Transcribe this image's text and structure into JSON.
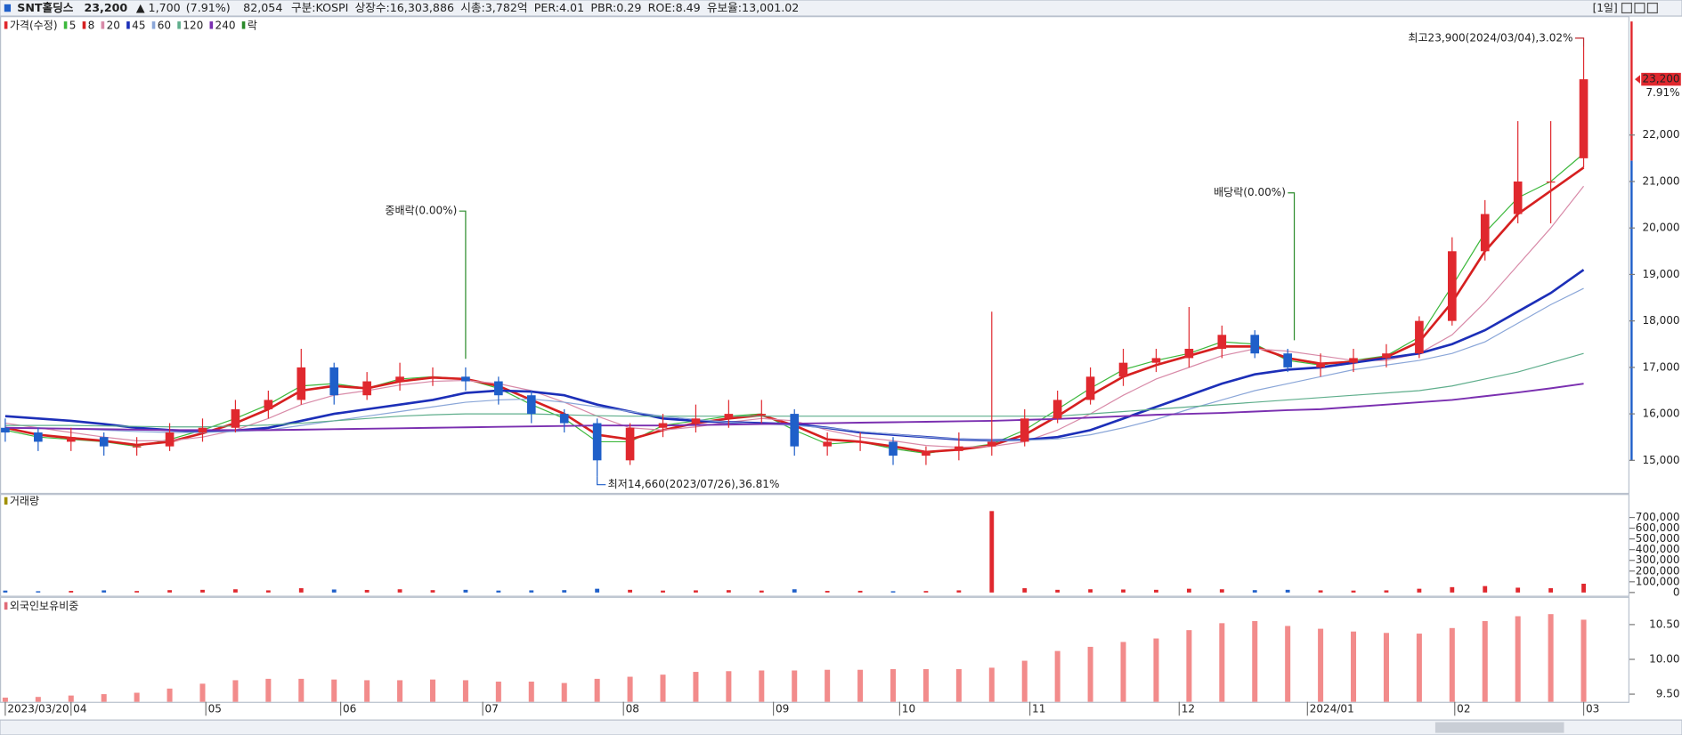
{
  "header": {
    "name": "SNT홀딩스",
    "price": "23,200",
    "change": "▲ 1,700",
    "change_pct": "(7.91%)",
    "volume": "82,054",
    "fields": [
      "구분:KOSPI",
      "상장수:16,303,886",
      "시총:3,782억",
      "PER:4.01",
      "PBR:0.29",
      "ROE:8.49",
      "유보율:13,001.02"
    ],
    "period": "[1일]"
  },
  "chart_data": [
    {
      "type": "candlestick",
      "name": "가격(수정)",
      "event_legend": "락",
      "up_color": "#e0282e",
      "down_color": "#1f5fc9",
      "x": [
        0,
        5,
        10,
        15,
        20,
        25,
        30,
        35,
        40,
        45,
        50,
        55,
        60,
        65,
        70,
        75,
        80,
        85,
        90,
        95,
        100,
        105,
        110,
        115,
        120,
        125,
        130,
        135,
        140,
        145,
        150,
        155,
        160,
        165,
        170,
        175,
        180,
        185,
        190,
        195,
        200,
        205,
        210,
        215,
        220,
        225,
        230,
        235,
        240
      ],
      "open": [
        15700,
        15600,
        15400,
        15500,
        15300,
        15300,
        15600,
        15700,
        16100,
        16300,
        17000,
        16400,
        16700,
        16800,
        16800,
        16700,
        16400,
        16000,
        15800,
        15000,
        15700,
        15800,
        15900,
        16000,
        16000,
        15300,
        15400,
        15400,
        15100,
        15200,
        15300,
        15400,
        15900,
        16300,
        16800,
        17100,
        17200,
        17400,
        17700,
        17300,
        17000,
        17100,
        17200,
        17300,
        18000,
        19500,
        20300,
        21000,
        21500
      ],
      "high": [
        15900,
        15700,
        15700,
        15600,
        15500,
        15800,
        15900,
        16300,
        16500,
        17400,
        17100,
        16900,
        17100,
        17000,
        17000,
        16800,
        16500,
        16100,
        15900,
        15800,
        16000,
        16200,
        16300,
        16300,
        16100,
        15600,
        15600,
        15500,
        15300,
        15600,
        18200,
        16100,
        16500,
        17000,
        17400,
        17400,
        18300,
        17900,
        17800,
        17400,
        17300,
        17400,
        17500,
        18100,
        19800,
        20600,
        22300,
        22300,
        23900
      ],
      "low": [
        15400,
        15200,
        15200,
        15100,
        15100,
        15200,
        15400,
        15600,
        15900,
        16200,
        16200,
        16300,
        16500,
        16600,
        16500,
        16200,
        15800,
        15600,
        14660,
        14900,
        15500,
        15600,
        15700,
        15800,
        15100,
        15100,
        15200,
        14900,
        14900,
        15000,
        15100,
        15300,
        15800,
        16200,
        16600,
        16900,
        17000,
        17200,
        17200,
        16900,
        16800,
        16900,
        17000,
        17200,
        17900,
        19300,
        20100,
        20100,
        21300
      ],
      "close": [
        15600,
        15400,
        15500,
        15300,
        15300,
        15600,
        15700,
        16100,
        16300,
        17000,
        16400,
        16700,
        16800,
        16800,
        16700,
        16400,
        16000,
        15800,
        15000,
        15700,
        15800,
        15900,
        16000,
        16000,
        15300,
        15400,
        15400,
        15100,
        15200,
        15300,
        15400,
        15900,
        16300,
        16800,
        17100,
        17200,
        17400,
        17700,
        17300,
        17000,
        17100,
        17200,
        17300,
        18000,
        19500,
        20300,
        21000,
        21000,
        23200
      ],
      "series": [
        {
          "name": "5",
          "color": "#3cb83c",
          "width": 1,
          "values": [
            15650,
            15500,
            15450,
            15400,
            15300,
            15450,
            15650,
            15900,
            16200,
            16600,
            16650,
            16550,
            16750,
            16800,
            16750,
            16550,
            16200,
            15900,
            15400,
            15400,
            15750,
            15850,
            15950,
            16000,
            15650,
            15350,
            15400,
            15250,
            15150,
            15250,
            15350,
            15650,
            16100,
            16550,
            16950,
            17150,
            17300,
            17550,
            17500,
            17150,
            17050,
            17150,
            17250,
            17650,
            18750,
            19900,
            20650,
            21000,
            21600
          ]
        },
        {
          "name": "8",
          "color": "#d62020",
          "width": 2.2,
          "values": [
            15700,
            15550,
            15480,
            15420,
            15330,
            15400,
            15580,
            15800,
            16100,
            16500,
            16600,
            16550,
            16700,
            16780,
            16750,
            16600,
            16300,
            16000,
            15550,
            15450,
            15650,
            15800,
            15900,
            15970,
            15750,
            15450,
            15400,
            15300,
            15180,
            15230,
            15320,
            15550,
            15950,
            16400,
            16800,
            17050,
            17250,
            17450,
            17450,
            17200,
            17080,
            17120,
            17220,
            17550,
            18400,
            19500,
            20300,
            20800,
            21300
          ]
        },
        {
          "name": "20",
          "color": "#d88aa8",
          "width": 1,
          "values": [
            15800,
            15700,
            15600,
            15500,
            15420,
            15420,
            15500,
            15650,
            15900,
            16200,
            16400,
            16500,
            16620,
            16700,
            16720,
            16650,
            16500,
            16250,
            15950,
            15700,
            15650,
            15720,
            15820,
            15900,
            15850,
            15650,
            15500,
            15420,
            15320,
            15280,
            15300,
            15400,
            15650,
            16000,
            16400,
            16750,
            17000,
            17250,
            17400,
            17350,
            17250,
            17150,
            17150,
            17300,
            17700,
            18400,
            19200,
            20000,
            20900
          ]
        },
        {
          "name": "45",
          "color": "#1c2fb8",
          "width": 2.2,
          "values": [
            15950,
            15900,
            15850,
            15780,
            15700,
            15650,
            15620,
            15640,
            15700,
            15850,
            16000,
            16100,
            16200,
            16300,
            16450,
            16500,
            16480,
            16400,
            16200,
            16050,
            15900,
            15850,
            15820,
            15800,
            15780,
            15700,
            15600,
            15550,
            15500,
            15450,
            15430,
            15440,
            15500,
            15650,
            15900,
            16150,
            16400,
            16650,
            16850,
            16950,
            17000,
            17100,
            17200,
            17300,
            17500,
            17800,
            18200,
            18600,
            19100
          ]
        },
        {
          "name": "60",
          "color": "#8aa6d8",
          "width": 1,
          "values": [
            15700,
            15700,
            15680,
            15650,
            15620,
            15600,
            15600,
            15620,
            15650,
            15750,
            15850,
            15950,
            16050,
            16150,
            16250,
            16300,
            16320,
            16250,
            16150,
            16050,
            15950,
            15880,
            15820,
            15780,
            15750,
            15700,
            15620,
            15560,
            15500,
            15460,
            15430,
            15430,
            15460,
            15550,
            15700,
            15880,
            16100,
            16300,
            16500,
            16650,
            16800,
            16950,
            17050,
            17150,
            17300,
            17550,
            17950,
            18350,
            18700
          ]
        },
        {
          "name": "120",
          "color": "#5fae8c",
          "width": 1,
          "values": [
            15750,
            15750,
            15750,
            15740,
            15730,
            15720,
            15720,
            15740,
            15760,
            15800,
            15850,
            15900,
            15950,
            15980,
            16000,
            16000,
            16000,
            15980,
            15960,
            15950,
            15950,
            15950,
            15950,
            15950,
            15950,
            15950,
            15950,
            15950,
            15950,
            15950,
            15950,
            15950,
            15950,
            16000,
            16050,
            16100,
            16150,
            16200,
            16250,
            16300,
            16350,
            16400,
            16450,
            16500,
            16600,
            16750,
            16900,
            17100,
            17300
          ]
        },
        {
          "name": "240",
          "color": "#7a2fb0",
          "width": 1.6,
          "values": [
            15700,
            15690,
            15680,
            15670,
            15660,
            15650,
            15650,
            15650,
            15650,
            15660,
            15670,
            15680,
            15690,
            15700,
            15710,
            15720,
            15730,
            15740,
            15750,
            15750,
            15750,
            15760,
            15770,
            15780,
            15790,
            15800,
            15810,
            15820,
            15830,
            15840,
            15850,
            15870,
            15890,
            15920,
            15950,
            15980,
            16000,
            16020,
            16050,
            16080,
            16100,
            16150,
            16200,
            16250,
            16300,
            16380,
            16460,
            16550,
            16650
          ]
        }
      ],
      "xlim": [
        -0.8,
        246.8
      ],
      "ylim": [
        14300,
        24560
      ],
      "yticks": [
        {
          "value": 15000,
          "label": "15,000"
        },
        {
          "value": 16000,
          "label": "16,000"
        },
        {
          "value": 17000,
          "label": "17,000"
        },
        {
          "value": 18000,
          "label": "18,000"
        },
        {
          "value": 19000,
          "label": "19,000"
        },
        {
          "value": 20000,
          "label": "20,000"
        },
        {
          "value": 21000,
          "label": "21,000"
        },
        {
          "value": 22000,
          "label": "22,000"
        }
      ],
      "high_label": {
        "text": "최고23,900(2024/03/04),3.02%",
        "x": 240,
        "y": 23900
      },
      "low_label": {
        "text": "최저14,660(2023/07/26),36.81%",
        "x": 90,
        "y": 14660
      },
      "events": [
        {
          "text": "중배락(0.00%)",
          "x": 70,
          "y": 17000
        },
        {
          "text": "배당락(0.00%)",
          "x": 196,
          "y": 17400
        }
      ],
      "price_tag": {
        "value": 23200,
        "label": "23,200"
      },
      "change_tag": "7.91%"
    },
    {
      "type": "bar",
      "title": "거래량",
      "title_color": "#a09000",
      "up_color": "#e0282e",
      "down_color": "#1f5fc9",
      "x": [
        0,
        5,
        10,
        15,
        20,
        25,
        30,
        35,
        40,
        45,
        50,
        55,
        60,
        65,
        70,
        75,
        80,
        85,
        90,
        95,
        100,
        105,
        110,
        115,
        120,
        125,
        130,
        135,
        140,
        145,
        150,
        155,
        160,
        165,
        170,
        175,
        180,
        185,
        190,
        195,
        200,
        205,
        210,
        215,
        220,
        225,
        230,
        235,
        240
      ],
      "values": [
        18000,
        12000,
        15000,
        20000,
        14000,
        22000,
        25000,
        30000,
        20000,
        40000,
        28000,
        24000,
        30000,
        22000,
        25000,
        18000,
        20000,
        22000,
        35000,
        25000,
        18000,
        20000,
        22000,
        18000,
        30000,
        15000,
        16000,
        12000,
        14000,
        20000,
        760000,
        40000,
        25000,
        30000,
        28000,
        25000,
        35000,
        30000,
        22000,
        25000,
        20000,
        18000,
        20000,
        35000,
        50000,
        60000,
        45000,
        40000,
        82054
      ],
      "xlim": [
        -0.8,
        246.8
      ],
      "ylim": [
        0,
        830000
      ],
      "yticks": [
        0,
        {
          "value": 100000,
          "label": "100,000"
        },
        {
          "value": 200000,
          "label": "200,000"
        },
        {
          "value": 300000,
          "label": "300,000"
        },
        {
          "value": 400000,
          "label": "400,000"
        },
        {
          "value": 500000,
          "label": "500,000"
        },
        {
          "value": 600000,
          "label": "600,000"
        },
        {
          "value": 700000,
          "label": "700,000"
        }
      ]
    },
    {
      "type": "bar",
      "title": "외국인보유비중",
      "title_color": "#e06b78",
      "color": "#f28b8b",
      "x": [
        0,
        5,
        10,
        15,
        20,
        25,
        30,
        35,
        40,
        45,
        50,
        55,
        60,
        65,
        70,
        75,
        80,
        85,
        90,
        95,
        100,
        105,
        110,
        115,
        120,
        125,
        130,
        135,
        140,
        145,
        150,
        155,
        160,
        165,
        170,
        175,
        180,
        185,
        190,
        195,
        200,
        205,
        210,
        215,
        220,
        225,
        230,
        235,
        240
      ],
      "values": [
        9.45,
        9.46,
        9.48,
        9.5,
        9.52,
        9.58,
        9.65,
        9.7,
        9.72,
        9.72,
        9.71,
        9.7,
        9.7,
        9.71,
        9.7,
        9.68,
        9.68,
        9.66,
        9.72,
        9.75,
        9.78,
        9.82,
        9.83,
        9.84,
        9.84,
        9.85,
        9.85,
        9.86,
        9.86,
        9.86,
        9.88,
        9.98,
        10.12,
        10.18,
        10.25,
        10.3,
        10.42,
        10.52,
        10.55,
        10.48,
        10.44,
        10.4,
        10.38,
        10.37,
        10.45,
        10.55,
        10.62,
        10.65,
        10.57
      ],
      "xlim": [
        -0.8,
        246.8
      ],
      "ylim": [
        9.39,
        10.73
      ],
      "yticks": [
        {
          "value": 9.5,
          "label": "9.50"
        },
        {
          "value": 10,
          "label": "10.00"
        },
        {
          "value": 10.5,
          "label": "10.50"
        }
      ],
      "xticks": [
        {
          "value": 0,
          "label": "2023/03/20"
        },
        {
          "value": 10,
          "label": "04"
        },
        {
          "value": 30.5,
          "label": "05"
        },
        {
          "value": 51,
          "label": "06"
        },
        {
          "value": 72.6,
          "label": "07"
        },
        {
          "value": 94,
          "label": "08"
        },
        {
          "value": 116.8,
          "label": "09"
        },
        {
          "value": 136,
          "label": "10"
        },
        {
          "value": 155.8,
          "label": "11"
        },
        {
          "value": 178.5,
          "label": "12"
        },
        {
          "value": 198,
          "label": "2024/01"
        },
        {
          "value": 220.4,
          "label": "02"
        },
        {
          "value": 240,
          "label": "03"
        }
      ]
    }
  ]
}
